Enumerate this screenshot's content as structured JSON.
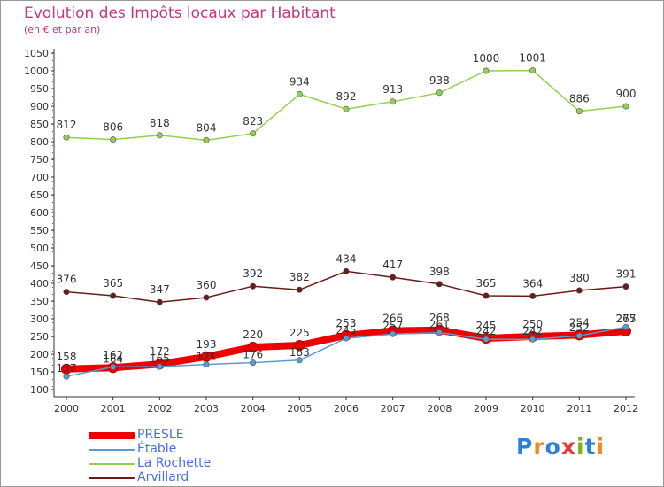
{
  "title": "Evolution des Impôts locaux par Habitant",
  "subtitle": "(en € et par an)",
  "logo": {
    "text": "Proxiti",
    "letters": [
      "P",
      "r",
      "o",
      "x",
      "i",
      "t",
      "i"
    ],
    "colors": [
      "#2e7fd6",
      "#f08a1c",
      "#2e7fd6",
      "#e23b3b",
      "#7ab51d",
      "#2e7fd6",
      "#f08a1c"
    ]
  },
  "chart_data": {
    "type": "line",
    "x": [
      "2000",
      "2001",
      "2002",
      "2003",
      "2004",
      "2005",
      "2006",
      "2007",
      "2008",
      "2009",
      "2010",
      "2011",
      "2012"
    ],
    "ylim": [
      100,
      1050
    ],
    "yticks": [
      100,
      150,
      200,
      250,
      300,
      350,
      400,
      450,
      500,
      550,
      600,
      650,
      700,
      750,
      800,
      850,
      900,
      950,
      1000,
      1050
    ],
    "grid": false,
    "legend_position": "bottom-left",
    "series": [
      {
        "name": "PRESLE",
        "color": "#ee0000",
        "values": [
          158,
          162,
          172,
          193,
          220,
          225,
          253,
          266,
          268,
          245,
          250,
          254,
          265
        ]
      },
      {
        "name": "Étable",
        "color": "#5b9bd5",
        "values": [
          137,
          164,
          165,
          171,
          176,
          183,
          245,
          257,
          261,
          242,
          242,
          252,
          277
        ]
      },
      {
        "name": "La Rochette",
        "color": "#92d050",
        "values": [
          812,
          806,
          818,
          804,
          823,
          934,
          892,
          913,
          938,
          1000,
          1001,
          886,
          900
        ]
      },
      {
        "name": "Arvillard",
        "color": "#6b1a1a",
        "values": [
          376,
          365,
          347,
          360,
          392,
          382,
          434,
          417,
          398,
          365,
          364,
          380,
          391
        ]
      }
    ]
  }
}
